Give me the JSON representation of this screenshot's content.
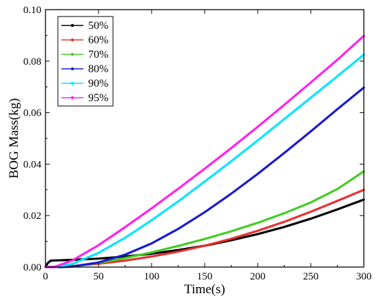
{
  "chart_data": {
    "type": "line",
    "xlabel": "Time(s)",
    "ylabel": "BOG Mass(kg)",
    "xlim": [
      0,
      300
    ],
    "ylim": [
      0,
      0.1
    ],
    "xticks": [
      0,
      50,
      100,
      150,
      200,
      250,
      300
    ],
    "yticks": [
      0.0,
      0.02,
      0.04,
      0.06,
      0.08,
      0.1
    ],
    "xtick_labels": [
      "0",
      "50",
      "100",
      "150",
      "200",
      "250",
      "300"
    ],
    "ytick_labels": [
      "0.00",
      "0.02",
      "0.04",
      "0.06",
      "0.08",
      "0.10"
    ],
    "legend_position": "top-left",
    "grid": false,
    "series": [
      {
        "name": "50%",
        "color": "#000000",
        "x": [
          0,
          2,
          5,
          10,
          25,
          50,
          75,
          100,
          125,
          150,
          175,
          200,
          225,
          250,
          275,
          300
        ],
        "y": [
          0.0,
          0.0015,
          0.0025,
          0.0026,
          0.0028,
          0.0033,
          0.0041,
          0.0052,
          0.0066,
          0.0083,
          0.0104,
          0.0128,
          0.0156,
          0.0188,
          0.0224,
          0.0262
        ]
      },
      {
        "name": "60%",
        "color": "#e83030",
        "x": [
          0,
          25,
          50,
          75,
          100,
          125,
          150,
          175,
          200,
          225,
          250,
          275,
          300
        ],
        "y": [
          0.0,
          0.0004,
          0.0013,
          0.0025,
          0.0041,
          0.006,
          0.0083,
          0.011,
          0.0141,
          0.0176,
          0.0215,
          0.0257,
          0.03
        ]
      },
      {
        "name": "70%",
        "color": "#44cc22",
        "x": [
          0,
          25,
          50,
          75,
          100,
          125,
          150,
          175,
          200,
          225,
          250,
          275,
          300
        ],
        "y": [
          0.0,
          0.0003,
          0.0016,
          0.0035,
          0.0057,
          0.0082,
          0.0109,
          0.0139,
          0.0172,
          0.0209,
          0.0251,
          0.0303,
          0.0372
        ]
      },
      {
        "name": "80%",
        "color": "#1a1acc",
        "x": [
          0,
          15,
          25,
          50,
          75,
          100,
          125,
          150,
          175,
          200,
          225,
          250,
          275,
          300
        ],
        "y": [
          0.0,
          0.0,
          0.0002,
          0.0018,
          0.0048,
          0.0092,
          0.0148,
          0.0213,
          0.0285,
          0.0362,
          0.0443,
          0.0527,
          0.0613,
          0.0697
        ]
      },
      {
        "name": "90%",
        "color": "#00e5ff",
        "x": [
          0,
          10,
          25,
          50,
          75,
          100,
          125,
          150,
          175,
          200,
          225,
          250,
          275,
          300
        ],
        "y": [
          0.0,
          0.0,
          0.0012,
          0.0055,
          0.0114,
          0.0182,
          0.0255,
          0.0332,
          0.0411,
          0.0492,
          0.0575,
          0.0658,
          0.0741,
          0.0825
        ]
      },
      {
        "name": "95%",
        "color": "#ff22ee",
        "x": [
          0,
          8,
          25,
          50,
          75,
          100,
          125,
          150,
          175,
          200,
          225,
          250,
          275,
          300
        ],
        "y": [
          0.0,
          0.0,
          0.0025,
          0.0085,
          0.0155,
          0.0228,
          0.0304,
          0.0382,
          0.0462,
          0.0545,
          0.063,
          0.0717,
          0.0805,
          0.0898
        ]
      }
    ]
  }
}
